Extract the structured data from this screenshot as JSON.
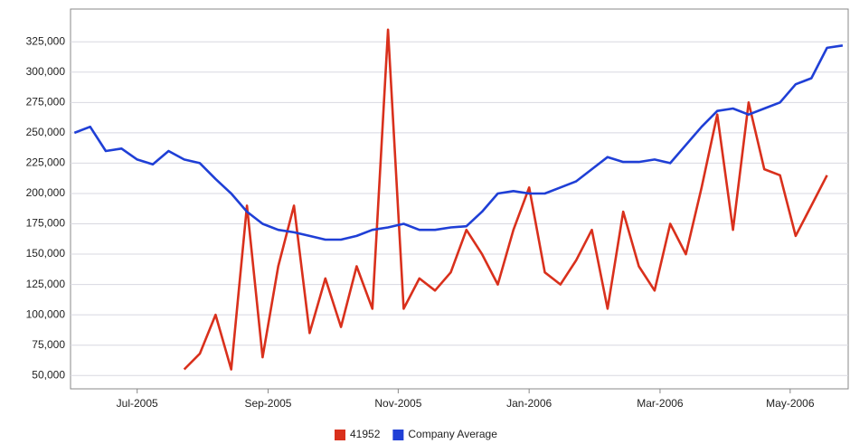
{
  "chart_data": {
    "type": "line",
    "x": [
      2005.42,
      2005.44,
      2005.46,
      2005.48,
      2005.5,
      2005.52,
      2005.54,
      2005.56,
      2005.58,
      2005.6,
      2005.62,
      2005.64,
      2005.66,
      2005.68,
      2005.7,
      2005.72,
      2005.74,
      2005.76,
      2005.78,
      2005.8,
      2005.82,
      2005.84,
      2005.86,
      2005.88,
      2005.9,
      2005.92,
      2005.94,
      2005.96,
      2005.98,
      2006.0,
      2006.02,
      2006.04,
      2006.06,
      2006.08,
      2006.1,
      2006.12,
      2006.14,
      2006.16,
      2006.18,
      2006.2,
      2006.22,
      2006.24,
      2006.26,
      2006.28,
      2006.3,
      2006.32,
      2006.34,
      2006.36,
      2006.38,
      2006.4
    ],
    "series": [
      {
        "name": "41952",
        "color": "#d9301c",
        "values": [
          null,
          null,
          null,
          null,
          null,
          null,
          null,
          55000,
          68000,
          100000,
          55000,
          190000,
          65000,
          140000,
          190000,
          85000,
          130000,
          90000,
          140000,
          105000,
          335000,
          105000,
          130000,
          120000,
          135000,
          170000,
          150000,
          125000,
          170000,
          205000,
          135000,
          125000,
          145000,
          170000,
          105000,
          185000,
          140000,
          120000,
          175000,
          150000,
          205000,
          265000,
          170000,
          275000,
          220000,
          215000,
          165000,
          190000,
          215000,
          null
        ]
      },
      {
        "name": "Company Average",
        "color": "#1f3fd6",
        "values": [
          250000,
          255000,
          235000,
          237000,
          228000,
          224000,
          235000,
          228000,
          225000,
          212000,
          200000,
          185000,
          175000,
          170000,
          168000,
          165000,
          162000,
          162000,
          165000,
          170000,
          172000,
          175000,
          170000,
          170000,
          172000,
          173000,
          185000,
          200000,
          202000,
          200000,
          200000,
          205000,
          210000,
          220000,
          230000,
          226000,
          226000,
          228000,
          225000,
          240000,
          255000,
          268000,
          270000,
          265000,
          270000,
          275000,
          290000,
          295000,
          320000,
          322000
        ]
      }
    ],
    "xlim": [
      2005.415,
      2006.407
    ],
    "xticks": [
      {
        "value": 2005.5,
        "label": "Jul-2005"
      },
      {
        "value": 2005.667,
        "label": "Sep-2005"
      },
      {
        "value": 2005.833,
        "label": "Nov-2005"
      },
      {
        "value": 2006.0,
        "label": "Jan-2006"
      },
      {
        "value": 2006.167,
        "label": "Mar-2006"
      },
      {
        "value": 2006.333,
        "label": "May-2006"
      }
    ],
    "ylim": [
      39000,
      352000
    ],
    "yticks": [
      {
        "value": 50000,
        "label": "50,000"
      },
      {
        "value": 75000,
        "label": "75,000"
      },
      {
        "value": 100000,
        "label": "100,000"
      },
      {
        "value": 125000,
        "label": "125,000"
      },
      {
        "value": 150000,
        "label": "150,000"
      },
      {
        "value": 175000,
        "label": "175,000"
      },
      {
        "value": 200000,
        "label": "200,000"
      },
      {
        "value": 225000,
        "label": "225,000"
      },
      {
        "value": 250000,
        "label": "250,000"
      },
      {
        "value": 275000,
        "label": "275,000"
      },
      {
        "value": 300000,
        "label": "300,000"
      },
      {
        "value": 325000,
        "label": "325,000"
      }
    ],
    "grid": true,
    "legend": "bottom"
  }
}
